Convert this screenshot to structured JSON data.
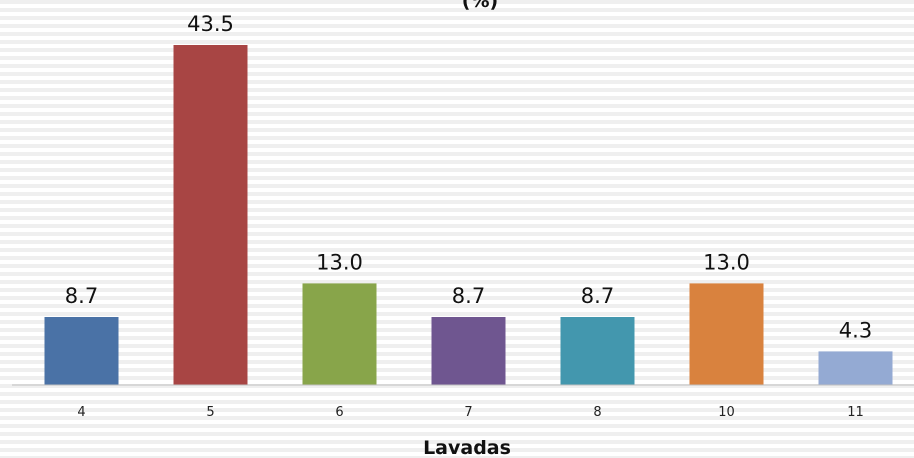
{
  "chart_data": {
    "type": "bar",
    "title": "(%)",
    "xlabel": "Lavadas",
    "ylabel": "",
    "categories": [
      "4",
      "5",
      "6",
      "7",
      "8",
      "10",
      "11"
    ],
    "values": [
      8.7,
      43.5,
      13.0,
      8.7,
      8.7,
      13.0,
      4.3
    ],
    "value_labels": [
      "8.7",
      "43.5",
      "13.0",
      "8.7",
      "8.7",
      "13.0",
      "4.3"
    ],
    "colors": [
      "#4a72a6",
      "#a84544",
      "#88a54a",
      "#6f5690",
      "#4397ae",
      "#d9823e",
      "#94aad3"
    ],
    "ylim": [
      0,
      43.5
    ],
    "grid": true,
    "grid_style": "striped",
    "legend": "none"
  }
}
